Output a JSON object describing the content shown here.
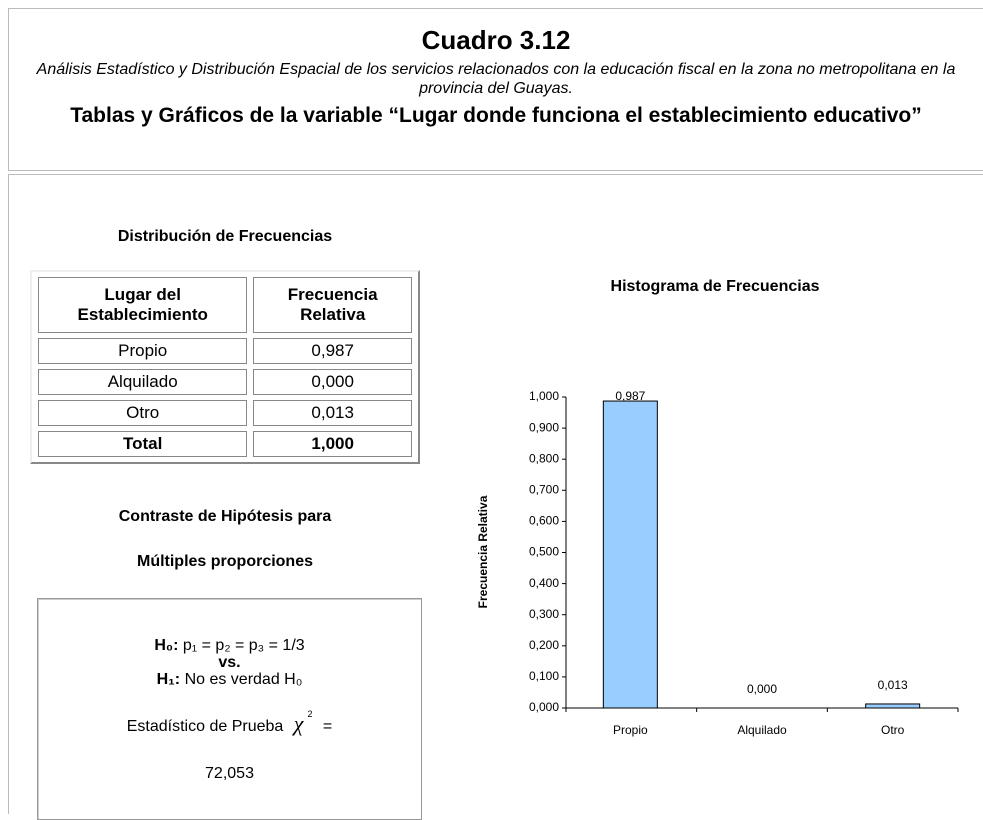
{
  "header": {
    "title": "Cuadro 3.12",
    "subtitle": "Análisis Estadístico y Distribución Espacial de los servicios relacionados con la educación fiscal en la zona no metropolitana en la provincia del Guayas.",
    "heading": "Tablas y Gráficos de la variable “Lugar donde funciona el establecimiento educativo”"
  },
  "table": {
    "title": "Distribución de Frecuencias",
    "columns": [
      "Lugar del Establecimiento",
      "Frecuencia Relativa"
    ],
    "rows": [
      [
        "Propio",
        "0,987"
      ],
      [
        "Alquilado",
        "0,000"
      ],
      [
        "Otro",
        "0,013"
      ],
      [
        "Total",
        "1,000"
      ]
    ]
  },
  "hypothesis": {
    "title_line1": "Contraste de Hipótesis para",
    "title_line2": "Múltiples proporciones",
    "h0_label": "H₀:",
    "h0_text": "p₁ = p₂ = p₃ = 1/3",
    "vs": "vs.",
    "h1_label": "H₁:",
    "h1_text": "No es verdad H₀",
    "statistic_label": "Estadístico de Prueba",
    "statistic_symbol": "χ",
    "statistic_power": "2",
    "equals": "=",
    "statistic_value": "72,053"
  },
  "chart_data": {
    "type": "bar",
    "title": "Histograma de Frecuencias",
    "y_label": "Frecuencia Relativa",
    "categories": [
      "Propio",
      "Alquilado",
      "Otro"
    ],
    "values": [
      0.987,
      0.0,
      0.013
    ],
    "value_labels": [
      "0,987",
      "0,000",
      "0,013"
    ],
    "color": "#99ccff",
    "ylim": [
      0,
      1
    ],
    "yticks": [
      {
        "value": 0,
        "label": "0,000"
      },
      {
        "value": 0.1,
        "label": "0,100"
      },
      {
        "value": 0.2,
        "label": "0,200"
      },
      {
        "value": 0.3,
        "label": "0,300"
      },
      {
        "value": 0.4,
        "label": "0,400"
      },
      {
        "value": 0.5,
        "label": "0,500"
      },
      {
        "value": 0.6,
        "label": "0,600"
      },
      {
        "value": 0.7,
        "label": "0,700"
      },
      {
        "value": 0.8,
        "label": "0,800"
      },
      {
        "value": 0.9,
        "label": "0,900"
      },
      {
        "value": 1,
        "label": "1,000"
      }
    ]
  }
}
